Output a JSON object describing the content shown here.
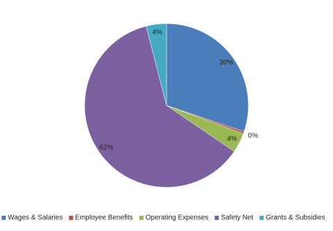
{
  "chart_data": {
    "type": "pie",
    "categories": [
      "Wages & Salaries",
      "Employee Benefits",
      "Operating Expenses",
      "Safety Net",
      "Grants & Subsidies"
    ],
    "values": [
      30.2,
      0.4,
      3.9,
      61.5,
      4.0
    ],
    "value_labels": [
      "30%",
      "0%",
      "4%",
      "62%",
      "4%"
    ],
    "colors": [
      "#4a7ebb",
      "#be4b48",
      "#98b954",
      "#7d60a0",
      "#46aac5"
    ],
    "legend": "bottom"
  }
}
